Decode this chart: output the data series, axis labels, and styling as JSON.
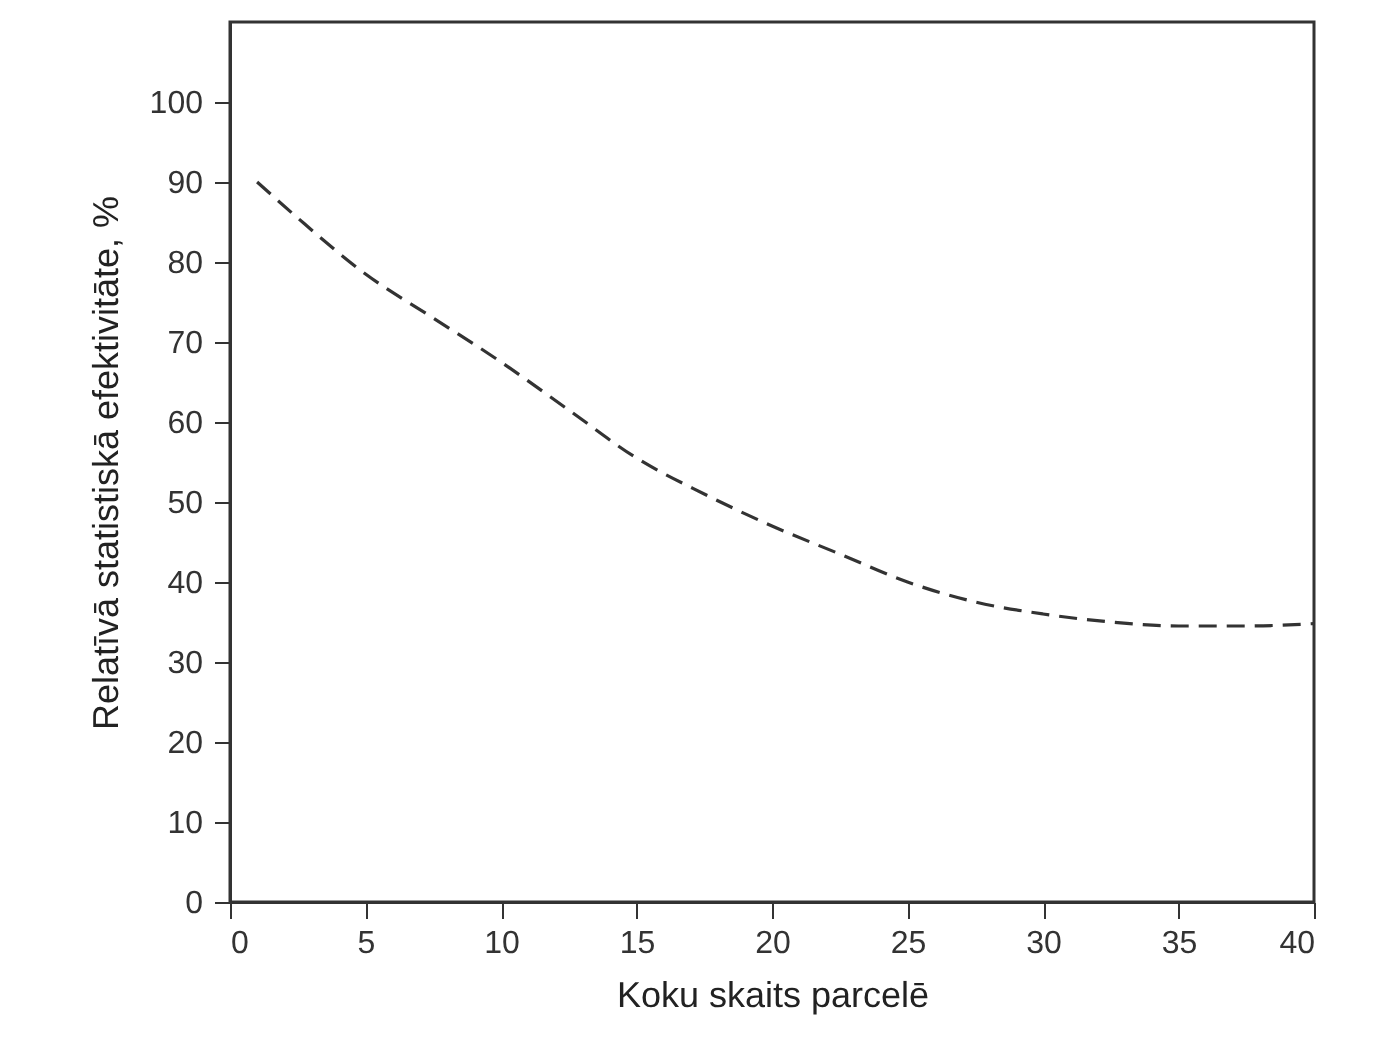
{
  "chart_data": {
    "type": "line",
    "xlabel": "Koku skaits parcelē",
    "ylabel": "Relatīvā statistiskā efektivitāte, %",
    "x": [
      1,
      2.5,
      5,
      7.5,
      10,
      12.5,
      15,
      17.5,
      20,
      22.5,
      25,
      27.5,
      30,
      32.5,
      35,
      37.5,
      40
    ],
    "series": [
      {
        "color": "#333333",
        "values": [
          90,
          85.5,
          78.5,
          73,
          67.5,
          61.5,
          55.5,
          51,
          47,
          43.5,
          40,
          37.5,
          36,
          35,
          34.5,
          34.5,
          34.8
        ]
      }
    ],
    "xlim": [
      0,
      40
    ],
    "xticks": [
      0,
      5,
      10,
      15,
      20,
      25,
      30,
      35,
      40
    ],
    "ylim": [
      0,
      110
    ],
    "yticks": [
      0,
      10,
      20,
      30,
      40,
      50,
      60,
      70,
      80,
      90,
      100
    ],
    "grid": false,
    "line_style": "dashed"
  }
}
